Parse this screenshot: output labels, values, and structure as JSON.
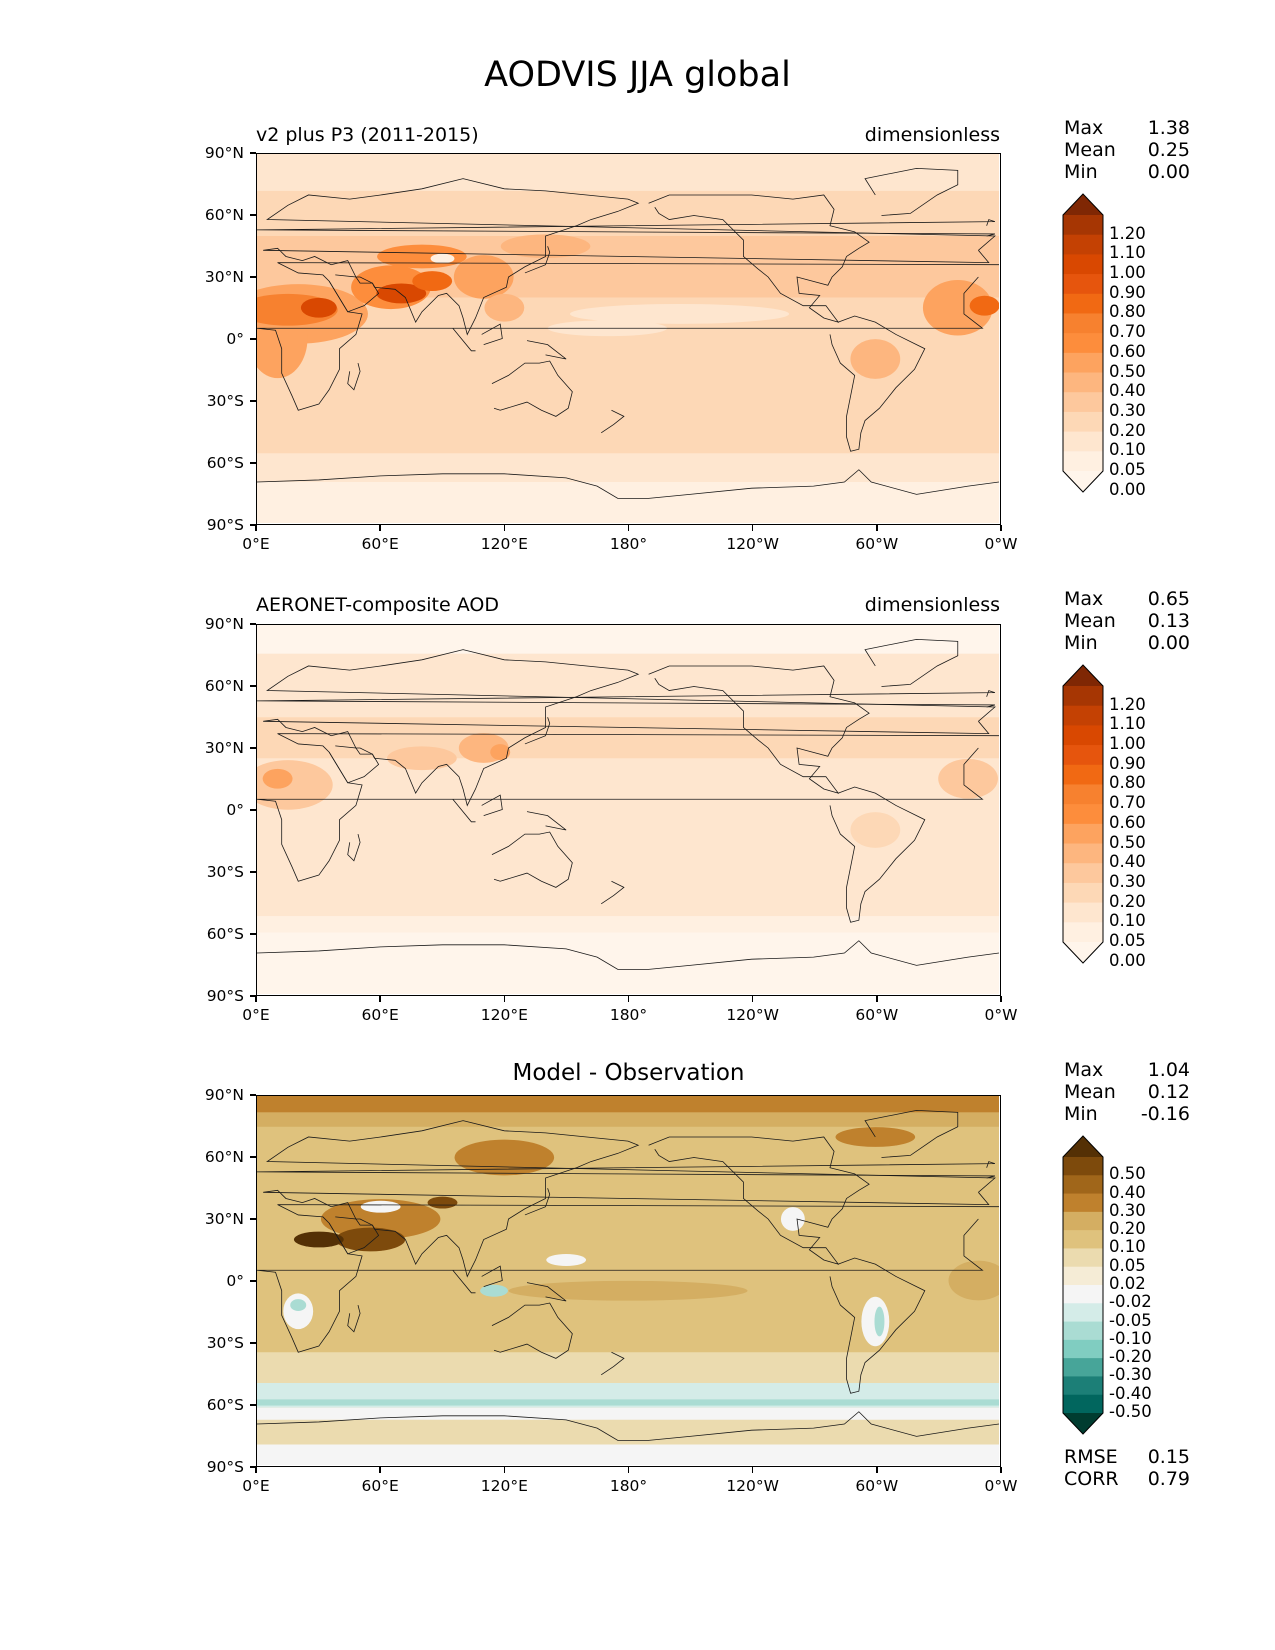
{
  "figure_title": "AODVIS JJA global",
  "lat_ticks": [
    "90°N",
    "60°N",
    "30°N",
    "0°",
    "30°S",
    "60°S",
    "90°S"
  ],
  "lon_ticks": [
    "0°E",
    "60°E",
    "120°E",
    "180°",
    "120°W",
    "60°W",
    "0°W"
  ],
  "aod_levels": [
    "1.20",
    "1.10",
    "1.00",
    "0.90",
    "0.80",
    "0.70",
    "0.60",
    "0.50",
    "0.40",
    "0.30",
    "0.20",
    "0.10",
    "0.05",
    "0.00"
  ],
  "diff_levels": [
    "0.50",
    "0.40",
    "0.30",
    "0.20",
    "0.10",
    "0.05",
    "0.02",
    "-0.02",
    "-0.05",
    "-0.10",
    "-0.20",
    "-0.30",
    "-0.40",
    "-0.50"
  ],
  "aod_colors": [
    "#7f2704",
    "#a63603",
    "#c44103",
    "#d94801",
    "#e6550d",
    "#f16913",
    "#f7812f",
    "#fd8d3c",
    "#fda35f",
    "#fdb67f",
    "#fdc89d",
    "#fdd8b6",
    "#fee6cf",
    "#fff0e1",
    "#fff5eb"
  ],
  "diff_colors": [
    "#543005",
    "#7d4a0c",
    "#a0661a",
    "#bf812d",
    "#d4ae62",
    "#dfc27d",
    "#ebdbaf",
    "#f5ecd6",
    "#f5f5f5",
    "#d4ece8",
    "#aadcd3",
    "#80cdc1",
    "#47a599",
    "#1c7f77",
    "#01665e",
    "#003c30"
  ],
  "panels": {
    "model": {
      "left_label": "v2 plus P3 (2011-2015)",
      "right_label": "dimensionless",
      "stats": {
        "max_label": "Max",
        "max": "1.38",
        "mean_label": "Mean",
        "mean": "0.25",
        "min_label": "Min",
        "min": "0.00"
      }
    },
    "obs": {
      "left_label": "AERONET-composite AOD",
      "right_label": "dimensionless",
      "stats": {
        "max_label": "Max",
        "max": "0.65",
        "mean_label": "Mean",
        "mean": "0.13",
        "min_label": "Min",
        "min": "0.00"
      }
    },
    "diff": {
      "title": "Model - Observation",
      "stats": {
        "max_label": "Max",
        "max": "1.04",
        "mean_label": "Mean",
        "mean": "0.12",
        "min_label": "Min",
        "min": "-0.16"
      },
      "metrics": {
        "rmse_label": "RMSE",
        "rmse": "0.15",
        "corr_label": "CORR",
        "corr": "0.79"
      }
    }
  }
}
